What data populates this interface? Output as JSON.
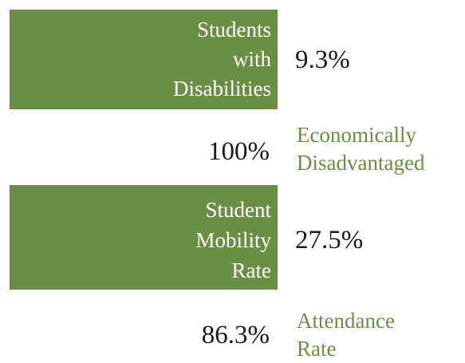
{
  "items": [
    {
      "label": [
        "Students",
        "with",
        "Disabilities"
      ],
      "value": "9.3%"
    },
    {
      "label": [
        "Economically",
        "Disadvantaged"
      ],
      "value": "100%"
    },
    {
      "label": [
        "Student",
        "Mobility",
        "Rate"
      ],
      "value": "27.5%"
    },
    {
      "label": [
        "Attendance",
        "Rate"
      ],
      "value": "86.3%"
    }
  ]
}
